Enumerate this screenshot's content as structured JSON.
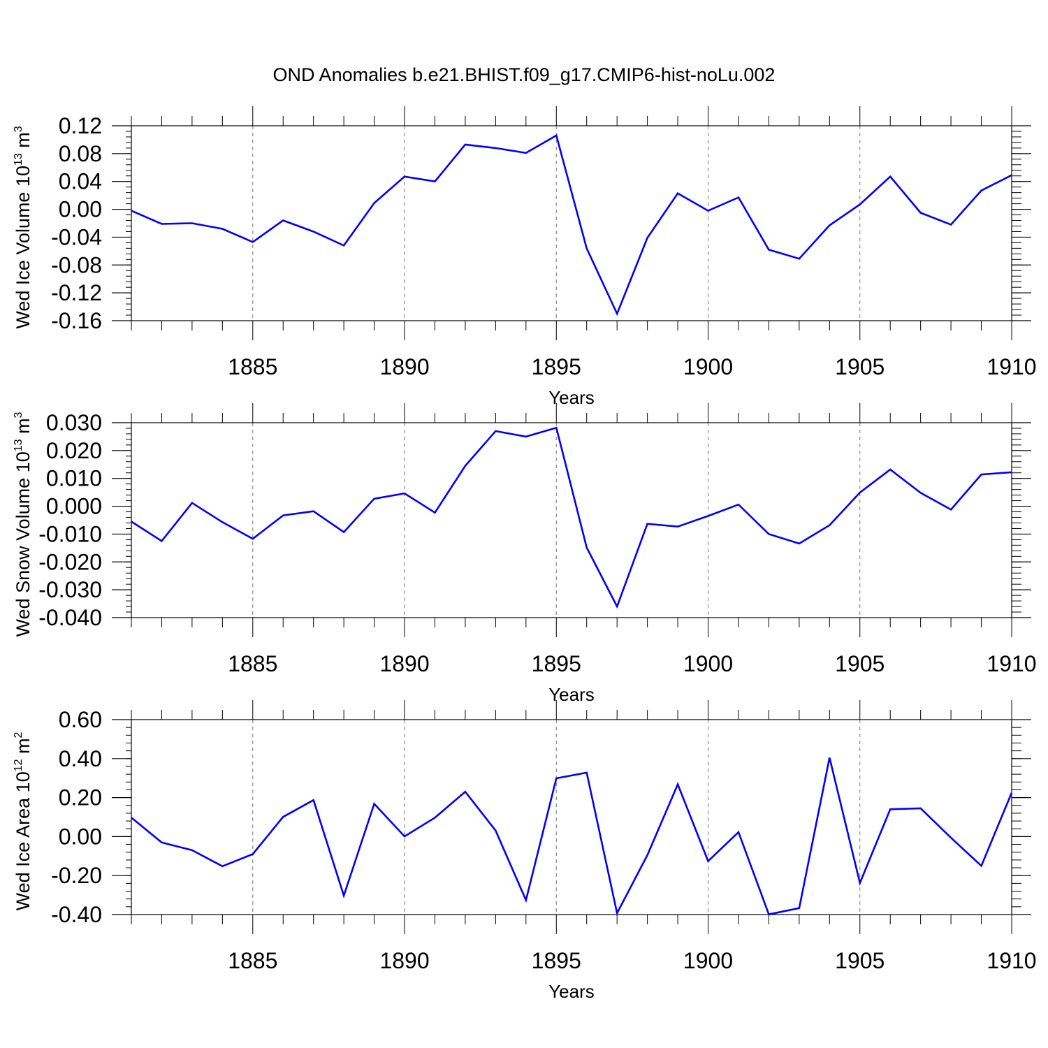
{
  "figure": {
    "title": "OND Anomalies b.e21.BHIST.f09_g17.CMIP6-hist-noLu.002"
  },
  "chart_data": [
    {
      "type": "line",
      "title": "",
      "xlabel": "Years",
      "ylabel": {
        "main": "Wed Ice Volume 10",
        "exp": "13",
        "unit": " m",
        "unit_exp": "3"
      },
      "xlim": [
        1881,
        1910
      ],
      "ylim": [
        -0.16,
        0.12
      ],
      "x_ticks": [
        1885,
        1890,
        1895,
        1900,
        1905,
        1910
      ],
      "x_tick_labels": [
        "1885",
        "1890",
        "1895",
        "1900",
        "1905",
        "1910"
      ],
      "y_ticks": [
        0.12,
        0.08,
        0.04,
        0.0,
        -0.04,
        -0.08,
        -0.12,
        -0.16
      ],
      "y_tick_labels": [
        "0.12",
        "0.08",
        "0.04",
        "0.00",
        "-0.04",
        "-0.08",
        "-0.12",
        "-0.16"
      ],
      "color": "#0000ff",
      "grid": "dashed vertical at major x ticks",
      "x": [
        1881,
        1882,
        1883,
        1884,
        1885,
        1886,
        1887,
        1888,
        1889,
        1890,
        1891,
        1892,
        1893,
        1894,
        1895,
        1896,
        1897,
        1898,
        1899,
        1900,
        1901,
        1902,
        1903,
        1904,
        1905,
        1906,
        1907,
        1908,
        1909,
        1910
      ],
      "values": [
        -0.002,
        -0.021,
        -0.02,
        -0.028,
        -0.047,
        -0.016,
        -0.032,
        -0.052,
        0.009,
        0.047,
        0.04,
        0.093,
        0.088,
        0.081,
        0.106,
        -0.056,
        -0.15,
        -0.041,
        0.023,
        -0.002,
        0.017,
        -0.058,
        -0.071,
        -0.023,
        0.007,
        0.047,
        -0.005,
        -0.022,
        0.027,
        0.049
      ]
    },
    {
      "type": "line",
      "title": "",
      "xlabel": "Years",
      "ylabel": {
        "main": "Wed Snow Volume 10",
        "exp": "13",
        "unit": " m",
        "unit_exp": "3"
      },
      "xlim": [
        1881,
        1910
      ],
      "ylim": [
        -0.04,
        0.03
      ],
      "x_ticks": [
        1885,
        1890,
        1895,
        1900,
        1905,
        1910
      ],
      "x_tick_labels": [
        "1885",
        "1890",
        "1895",
        "1900",
        "1905",
        "1910"
      ],
      "y_ticks": [
        0.03,
        0.02,
        0.01,
        0.0,
        -0.01,
        -0.02,
        -0.03,
        -0.04
      ],
      "y_tick_labels": [
        "0.030",
        "0.020",
        "0.010",
        "0.000",
        "-0.010",
        "-0.020",
        "-0.030",
        "-0.040"
      ],
      "color": "#0000ff",
      "grid": "dashed vertical at major x ticks",
      "x": [
        1881,
        1882,
        1883,
        1884,
        1885,
        1886,
        1887,
        1888,
        1889,
        1890,
        1891,
        1892,
        1893,
        1894,
        1895,
        1896,
        1897,
        1898,
        1899,
        1900,
        1901,
        1902,
        1903,
        1904,
        1905,
        1906,
        1907,
        1908,
        1909,
        1910
      ],
      "values": [
        -0.0055,
        -0.0125,
        0.0012,
        -0.0057,
        -0.0117,
        -0.0033,
        -0.0018,
        -0.0093,
        0.0027,
        0.0046,
        -0.0023,
        0.0145,
        0.027,
        0.025,
        0.0282,
        -0.0148,
        -0.036,
        -0.0063,
        -0.0073,
        -0.0035,
        0.0006,
        -0.01,
        -0.0134,
        -0.0068,
        0.0049,
        0.0132,
        0.0048,
        -0.0012,
        0.0114,
        0.0122
      ]
    },
    {
      "type": "line",
      "title": "",
      "xlabel": "Years",
      "ylabel": {
        "main": "Wed Ice Area 10",
        "exp": "12",
        "unit": " m",
        "unit_exp": "2"
      },
      "xlim": [
        1881,
        1910
      ],
      "ylim": [
        -0.4,
        0.6
      ],
      "x_ticks": [
        1885,
        1890,
        1895,
        1900,
        1905,
        1910
      ],
      "x_tick_labels": [
        "1885",
        "1890",
        "1895",
        "1900",
        "1905",
        "1910"
      ],
      "y_ticks": [
        0.6,
        0.4,
        0.2,
        0.0,
        -0.2,
        -0.4
      ],
      "y_tick_labels": [
        "0.60",
        "0.40",
        "0.20",
        "0.00",
        "-0.20",
        "-0.40"
      ],
      "color": "#0000ff",
      "grid": "dashed vertical at major x ticks",
      "x": [
        1881,
        1882,
        1883,
        1884,
        1885,
        1886,
        1887,
        1888,
        1889,
        1890,
        1891,
        1892,
        1893,
        1894,
        1895,
        1896,
        1897,
        1898,
        1899,
        1900,
        1901,
        1902,
        1903,
        1904,
        1905,
        1906,
        1907,
        1908,
        1909,
        1910
      ],
      "values": [
        0.097,
        -0.03,
        -0.07,
        -0.152,
        -0.09,
        0.101,
        0.187,
        -0.303,
        0.168,
        0.001,
        0.097,
        0.23,
        0.031,
        -0.326,
        0.299,
        0.328,
        -0.393,
        -0.095,
        0.268,
        -0.126,
        0.023,
        -0.399,
        -0.367,
        0.405,
        -0.238,
        0.14,
        0.145,
        -0.006,
        -0.15,
        0.225
      ]
    }
  ]
}
